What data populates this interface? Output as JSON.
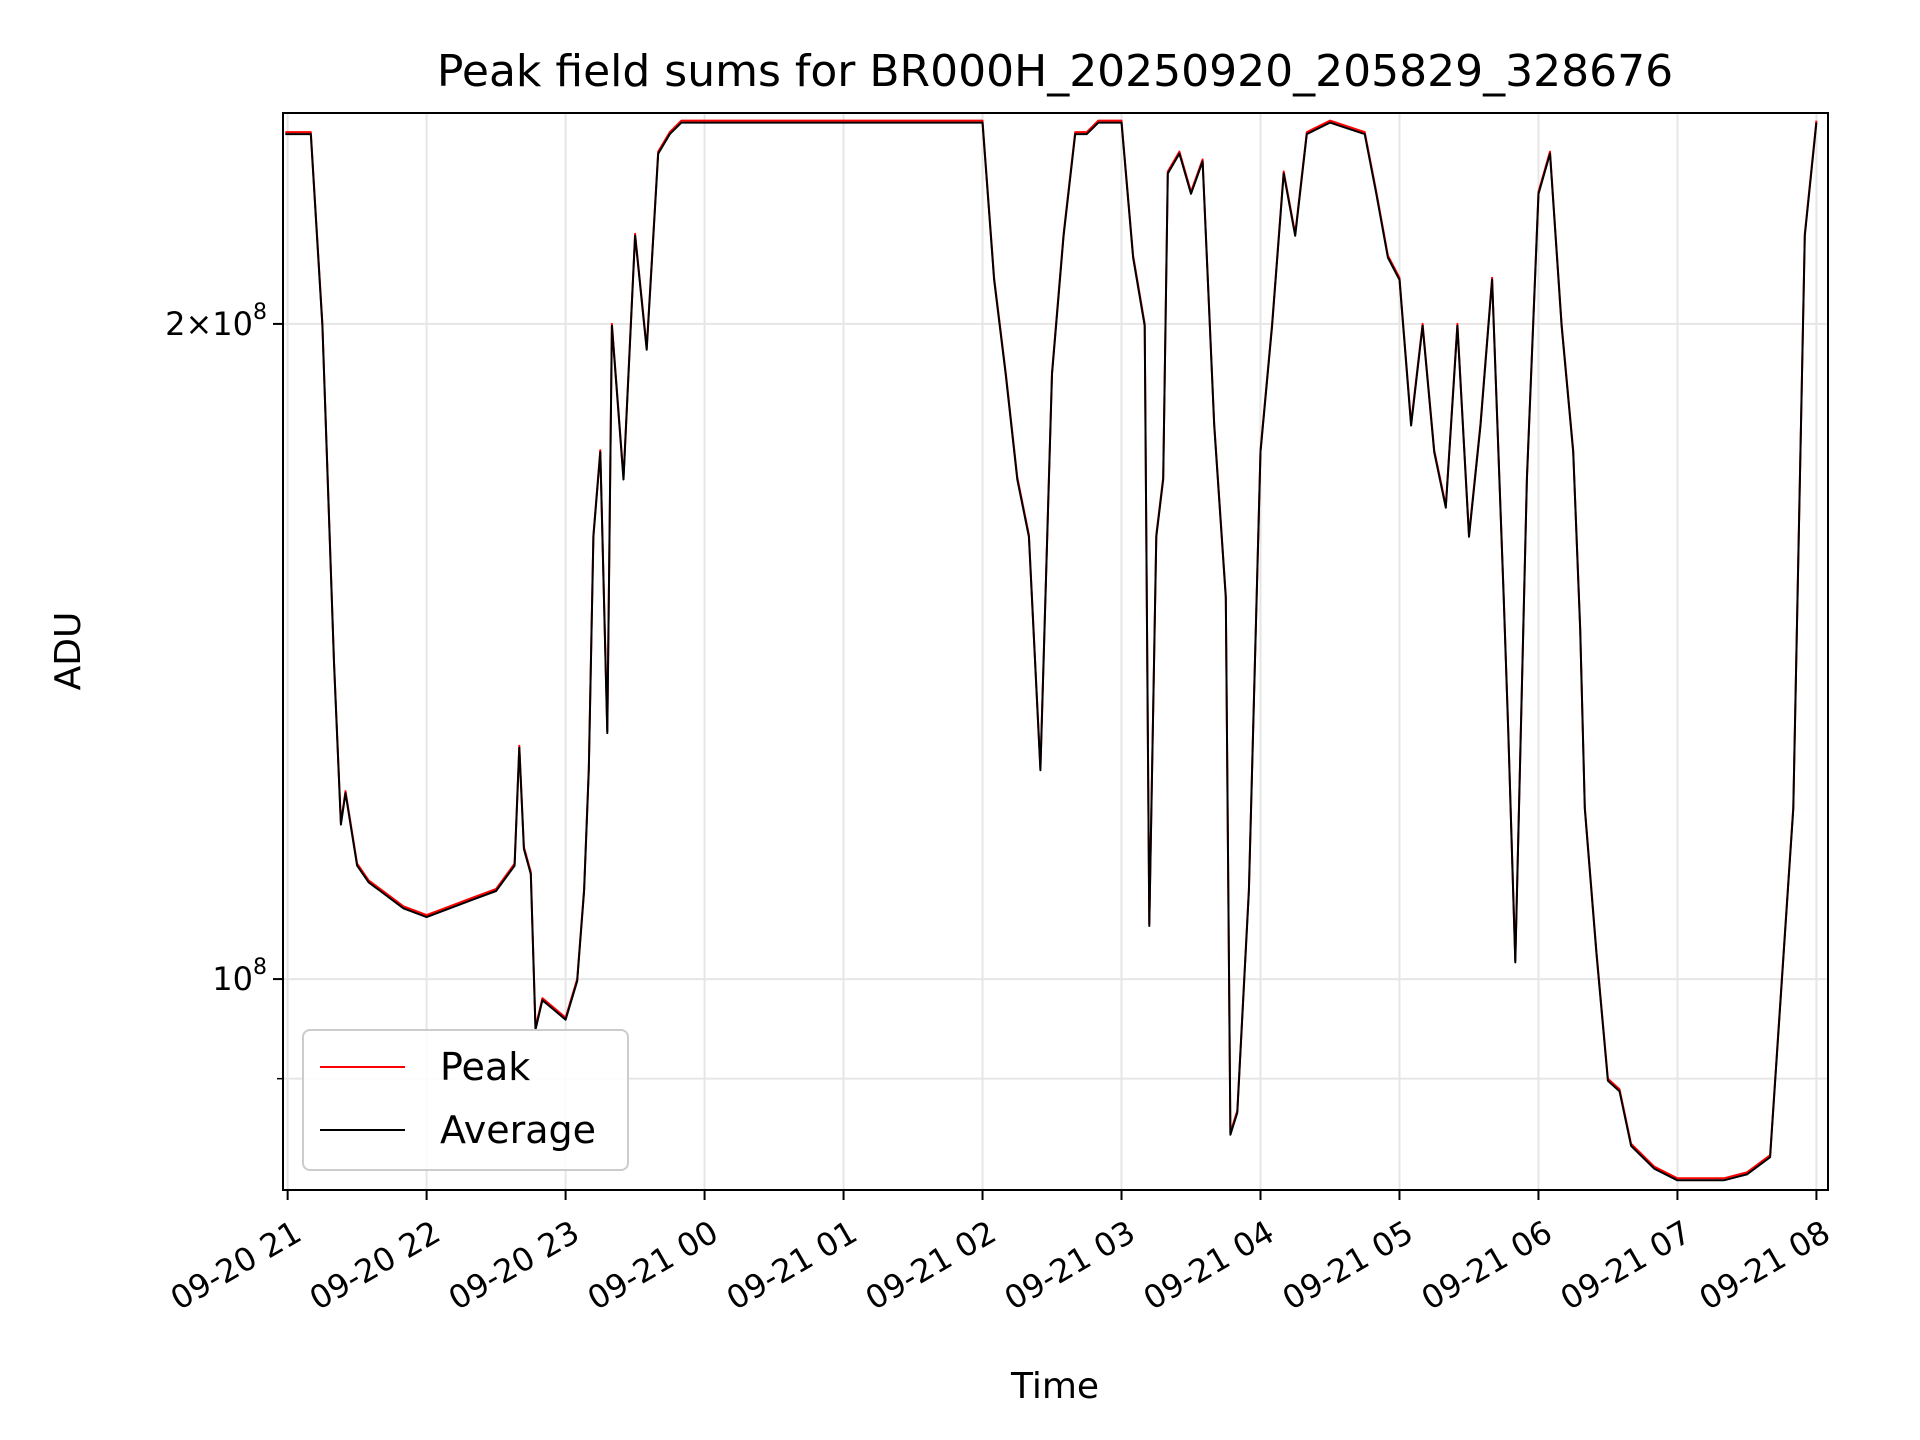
{
  "chart_data": {
    "type": "line",
    "title": "Peak field sums for BR000H_20250920_205829_328676",
    "xlabel": "Time",
    "ylabel": "ADU",
    "yscale": "log",
    "grid": true,
    "legend_position": "lower-left",
    "xlim": [
      "2025-09-20 20:58",
      "2025-09-21 08:05"
    ],
    "ylim": [
      80000000,
      250000000
    ],
    "x_ticks": [
      "09-20 21",
      "09-20 22",
      "09-20 23",
      "09-21 00",
      "09-21 01",
      "09-21 02",
      "09-21 03",
      "09-21 04",
      "09-21 05",
      "09-21 06",
      "09-21 07",
      "09-21 08"
    ],
    "x_tick_times": [
      "2025-09-20 21:00",
      "2025-09-20 22:00",
      "2025-09-20 23:00",
      "2025-09-21 00:00",
      "2025-09-21 01:00",
      "2025-09-21 02:00",
      "2025-09-21 03:00",
      "2025-09-21 04:00",
      "2025-09-21 05:00",
      "2025-09-21 06:00",
      "2025-09-21 07:00",
      "2025-09-21 08:00"
    ],
    "y_ticks_major": [
      {
        "value": 100000000,
        "mant": "",
        "base": "10",
        "exp": "8"
      },
      {
        "value": 200000000,
        "mant": "2×",
        "base": "10",
        "exp": "8"
      }
    ],
    "y_ticks_minor": [
      90000000,
      300000000
    ],
    "series": [
      {
        "name": "Peak",
        "color": "#ff0000"
      },
      {
        "name": "Average",
        "color": "#000000"
      }
    ],
    "x": [
      "2025-09-20 20:59",
      "2025-09-20 21:10",
      "2025-09-20 21:15",
      "2025-09-20 21:20",
      "2025-09-20 21:23",
      "2025-09-20 21:25",
      "2025-09-20 21:30",
      "2025-09-20 21:35",
      "2025-09-20 21:40",
      "2025-09-20 21:50",
      "2025-09-20 22:00",
      "2025-09-20 22:10",
      "2025-09-20 22:20",
      "2025-09-20 22:30",
      "2025-09-20 22:38",
      "2025-09-20 22:40",
      "2025-09-20 22:42",
      "2025-09-20 22:45",
      "2025-09-20 22:47",
      "2025-09-20 22:50",
      "2025-09-20 22:55",
      "2025-09-20 23:00",
      "2025-09-20 23:05",
      "2025-09-20 23:08",
      "2025-09-20 23:10",
      "2025-09-20 23:12",
      "2025-09-20 23:15",
      "2025-09-20 23:18",
      "2025-09-20 23:20",
      "2025-09-20 23:25",
      "2025-09-20 23:30",
      "2025-09-20 23:35",
      "2025-09-20 23:40",
      "2025-09-20 23:45",
      "2025-09-20 23:50",
      "2025-09-21 00:00",
      "2025-09-21 01:00",
      "2025-09-21 02:00",
      "2025-09-21 02:05",
      "2025-09-21 02:10",
      "2025-09-21 02:15",
      "2025-09-21 02:20",
      "2025-09-21 02:25",
      "2025-09-21 02:30",
      "2025-09-21 02:35",
      "2025-09-21 02:40",
      "2025-09-21 02:45",
      "2025-09-21 02:50",
      "2025-09-21 02:55",
      "2025-09-21 03:00",
      "2025-09-21 03:05",
      "2025-09-21 03:10",
      "2025-09-21 03:12",
      "2025-09-21 03:15",
      "2025-09-21 03:18",
      "2025-09-21 03:20",
      "2025-09-21 03:25",
      "2025-09-21 03:30",
      "2025-09-21 03:35",
      "2025-09-21 03:40",
      "2025-09-21 03:45",
      "2025-09-21 03:47",
      "2025-09-21 03:50",
      "2025-09-21 03:55",
      "2025-09-21 04:00",
      "2025-09-21 04:05",
      "2025-09-21 04:10",
      "2025-09-21 04:15",
      "2025-09-21 04:20",
      "2025-09-21 04:30",
      "2025-09-21 04:45",
      "2025-09-21 04:50",
      "2025-09-21 04:55",
      "2025-09-21 05:00",
      "2025-09-21 05:05",
      "2025-09-21 05:10",
      "2025-09-21 05:15",
      "2025-09-21 05:20",
      "2025-09-21 05:25",
      "2025-09-21 05:30",
      "2025-09-21 05:35",
      "2025-09-21 05:40",
      "2025-09-21 05:45",
      "2025-09-21 05:47",
      "2025-09-21 05:50",
      "2025-09-21 05:55",
      "2025-09-21 06:00",
      "2025-09-21 06:05",
      "2025-09-21 06:10",
      "2025-09-21 06:15",
      "2025-09-21 06:18",
      "2025-09-21 06:20",
      "2025-09-21 06:25",
      "2025-09-21 06:30",
      "2025-09-21 06:35",
      "2025-09-21 06:40",
      "2025-09-21 06:50",
      "2025-09-21 07:00",
      "2025-09-21 07:10",
      "2025-09-21 07:20",
      "2025-09-21 07:30",
      "2025-09-21 07:40",
      "2025-09-21 07:50",
      "2025-09-21 07:55",
      "2025-09-21 08:00"
    ],
    "values": [
      245000000,
      245000000,
      200000000,
      140000000,
      118000000,
      122000000,
      113000000,
      111000000,
      110000000,
      108000000,
      107000000,
      108000000,
      109000000,
      110000000,
      113000000,
      128000000,
      115000000,
      112000000,
      95000000,
      98000000,
      97000000,
      96000000,
      100000000,
      110000000,
      125000000,
      160000000,
      175000000,
      130000000,
      200000000,
      170000000,
      220000000,
      195000000,
      240000000,
      245000000,
      248000000,
      248000000,
      248000000,
      248000000,
      210000000,
      190000000,
      170000000,
      160000000,
      125000000,
      190000000,
      220000000,
      245000000,
      245000000,
      248000000,
      248000000,
      248000000,
      215000000,
      200000000,
      106000000,
      160000000,
      170000000,
      235000000,
      240000000,
      230000000,
      238000000,
      180000000,
      150000000,
      85000000,
      87000000,
      110000000,
      175000000,
      200000000,
      235000000,
      220000000,
      245000000,
      248000000,
      245000000,
      230000000,
      215000000,
      210000000,
      180000000,
      200000000,
      175000000,
      165000000,
      200000000,
      160000000,
      180000000,
      210000000,
      150000000,
      130000000,
      102000000,
      170000000,
      230000000,
      240000000,
      200000000,
      175000000,
      145000000,
      120000000,
      103000000,
      90000000,
      89000000,
      84000000,
      82000000,
      81000000,
      81000000,
      81000000,
      81500000,
      83000000,
      120000000,
      220000000,
      248000000
    ]
  }
}
